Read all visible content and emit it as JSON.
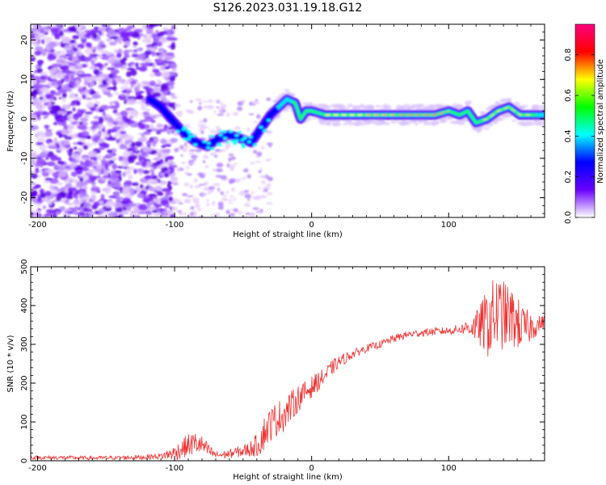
{
  "figure": {
    "title": "S126.2023.031.19.18.G12"
  },
  "chart_data": [
    {
      "type": "heatmap",
      "xlabel": "Height of straight line (km)",
      "ylabel": "Frequency (Hz)",
      "xlim": [
        -205,
        170
      ],
      "ylim": [
        -25,
        24
      ],
      "x_ticks": [
        -200,
        -100,
        0,
        100
      ],
      "x_tick_labels": [
        "-200",
        "-100",
        "0",
        "100"
      ],
      "y_ticks": [
        20,
        10,
        0,
        -10,
        -20
      ],
      "y_tick_labels": [
        "20",
        "10",
        "0",
        "-10",
        "-20"
      ],
      "ridge": {
        "x": [
          -118,
          -110,
          -100,
          -92,
          -84,
          -76,
          -68,
          -60,
          -52,
          -44,
          -40,
          -36,
          -30,
          -24,
          -18,
          -12,
          -8,
          -4,
          0,
          10,
          30,
          50,
          70,
          90,
          100,
          108,
          114,
          120,
          128,
          136,
          144,
          152,
          160,
          170
        ],
        "y": [
          5,
          3,
          -1,
          -4,
          -6,
          -7,
          -5,
          -4,
          -5,
          -6,
          -4,
          -2,
          1,
          3,
          5,
          4,
          0,
          2,
          2,
          1,
          1,
          1,
          1,
          1,
          2,
          1,
          2,
          -1,
          0,
          2,
          3,
          1,
          1,
          1
        ]
      },
      "colorbar": {
        "label": "Normalized spectral amplitude",
        "range": [
          0,
          0.95
        ],
        "ticks": [
          0.0,
          0.2,
          0.4,
          0.6,
          0.8
        ],
        "tick_labels": [
          "0.0",
          "0.2",
          "0.4",
          "0.6",
          "0.8"
        ],
        "colormap": [
          "#ffffff",
          "#6a00ff",
          "#0000ff",
          "#00ffff",
          "#00ff00",
          "#ffff00",
          "#ff0000",
          "#ff0080"
        ]
      }
    },
    {
      "type": "line",
      "xlabel": "Height of straight line (km)",
      "ylabel": "SNR (10 * v/v)",
      "xlim": [
        -205,
        170
      ],
      "ylim": [
        0,
        500
      ],
      "x_ticks": [
        -200,
        -100,
        0,
        100
      ],
      "x_tick_labels": [
        "-200",
        "-100",
        "0",
        "100"
      ],
      "y_ticks": [
        0,
        100,
        200,
        300,
        400,
        500
      ],
      "y_tick_labels": [
        "0",
        "100",
        "200",
        "300",
        "400",
        "500"
      ],
      "color": "#ee3333",
      "series": [
        {
          "x": [
            -205,
            -180,
            -160,
            -140,
            -125,
            -110,
            -100,
            -95,
            -90,
            -85,
            -80,
            -75,
            -70,
            -65,
            -60,
            -55,
            -50,
            -45,
            -40,
            -38,
            -35,
            -30,
            -25,
            -20,
            -15,
            -10,
            -5,
            0,
            5,
            10,
            15,
            20,
            30,
            40,
            50,
            60,
            70,
            80,
            90,
            100,
            110,
            115,
            120,
            125,
            130,
            135,
            140,
            145,
            150,
            155,
            160,
            165,
            170
          ],
          "y": [
            8,
            8,
            7,
            8,
            9,
            12,
            20,
            30,
            40,
            45,
            40,
            25,
            15,
            15,
            18,
            22,
            25,
            30,
            40,
            50,
            70,
            95,
            110,
            120,
            140,
            160,
            175,
            190,
            205,
            220,
            240,
            255,
            275,
            290,
            300,
            315,
            325,
            330,
            333,
            335,
            340,
            345,
            345,
            350,
            360,
            380,
            375,
            370,
            355,
            340,
            345,
            350,
            360
          ],
          "amplitude": [
            5,
            5,
            5,
            5,
            6,
            8,
            20,
            25,
            30,
            30,
            25,
            18,
            10,
            10,
            12,
            14,
            16,
            20,
            30,
            40,
            45,
            45,
            45,
            45,
            40,
            35,
            30,
            28,
            25,
            22,
            20,
            16,
            12,
            10,
            10,
            10,
            10,
            10,
            10,
            10,
            14,
            25,
            40,
            70,
            100,
            100,
            90,
            80,
            70,
            55,
            40,
            25,
            15
          ]
        }
      ]
    }
  ]
}
